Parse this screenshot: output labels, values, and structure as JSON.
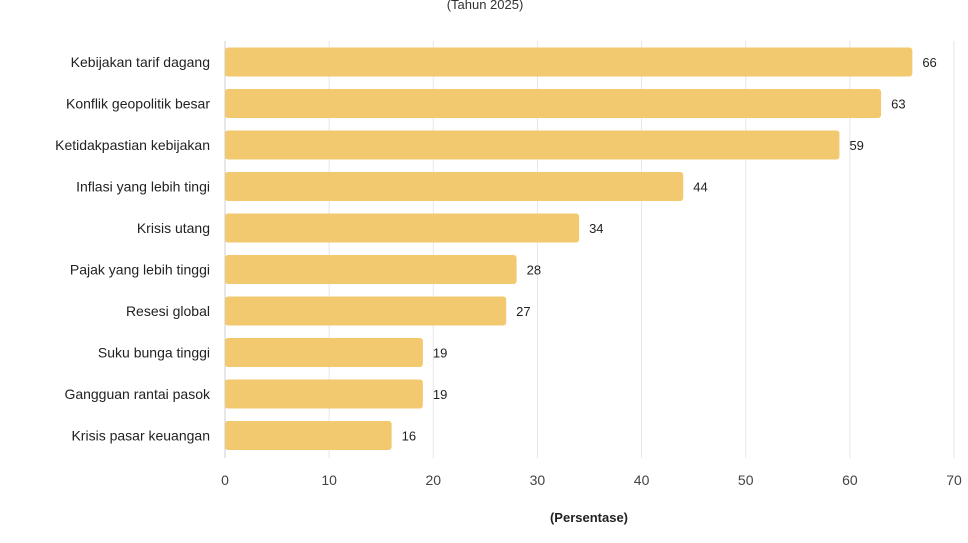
{
  "chart_data": {
    "type": "bar",
    "orientation": "horizontal",
    "subtitle": "(Tahun 2025)",
    "xlabel": "(Persentase)",
    "categories": [
      "Kebijakan tarif dagang",
      "Konflik geopolitik besar",
      "Ketidakpastian kebijakan",
      "Inflasi yang lebih tingi",
      "Krisis utang",
      "Pajak yang lebih tinggi",
      "Resesi global",
      "Suku bunga tinggi",
      "Gangguan rantai pasok",
      "Krisis pasar keuangan"
    ],
    "values": [
      66,
      63,
      59,
      44,
      34,
      28,
      27,
      19,
      19,
      16
    ],
    "xlim": [
      0,
      70
    ],
    "xticks": [
      0,
      10,
      20,
      30,
      40,
      50,
      60,
      70
    ],
    "grid": true,
    "bar_color": "#f2c96e"
  }
}
